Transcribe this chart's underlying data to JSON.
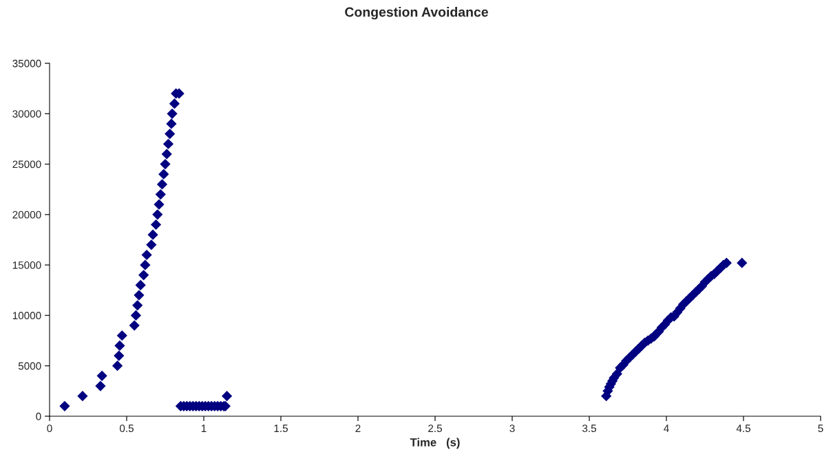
{
  "chart_data": {
    "type": "scatter",
    "title": "Congestion Avoidance",
    "xlabel": "Time   (s)",
    "xlim": [
      0,
      5
    ],
    "xticks": [
      0,
      0.5,
      1,
      1.5,
      2,
      2.5,
      3,
      3.5,
      4,
      4.5,
      5
    ],
    "ylim": [
      0,
      35000
    ],
    "yticks": [
      0,
      5000,
      10000,
      15000,
      20000,
      25000,
      30000,
      35000
    ],
    "grid": false,
    "legend": false,
    "marker": "diamond",
    "series": [
      {
        "color": "#000080",
        "x": [
          0.098,
          0.214,
          0.33,
          0.34,
          0.44,
          0.45,
          0.455,
          0.47,
          0.55,
          0.56,
          0.57,
          0.58,
          0.59,
          0.61,
          0.62,
          0.63,
          0.66,
          0.67,
          0.69,
          0.7,
          0.71,
          0.72,
          0.73,
          0.74,
          0.75,
          0.76,
          0.77,
          0.78,
          0.79,
          0.795,
          0.81,
          0.82,
          0.84,
          0.85,
          0.87,
          0.89,
          0.91,
          0.93,
          0.95,
          0.97,
          0.99,
          1.01,
          1.03,
          1.05,
          1.07,
          1.09,
          1.11,
          1.13,
          1.14,
          1.15,
          3.61,
          3.62,
          3.63,
          3.64,
          3.65,
          3.66,
          3.68,
          3.7,
          3.72,
          3.74,
          3.76,
          3.78,
          3.8,
          3.82,
          3.84,
          3.86,
          3.88,
          3.9,
          3.92,
          3.93,
          3.95,
          3.97,
          3.99,
          4.01,
          4.03,
          4.05,
          4.07,
          4.09,
          4.11,
          4.13,
          4.15,
          4.17,
          4.19,
          4.21,
          4.23,
          4.25,
          4.27,
          4.29,
          4.31,
          4.33,
          4.35,
          4.37,
          4.39,
          4.49
        ],
        "values": [
          1000,
          2000,
          3000,
          4000,
          5000,
          6000,
          7000,
          8000,
          9000,
          10000,
          11000,
          12000,
          13000,
          14000,
          15000,
          16000,
          17000,
          18000,
          19000,
          20000,
          21000,
          22000,
          23000,
          24000,
          25000,
          26000,
          27000,
          28000,
          29000,
          30000,
          31000,
          32000,
          32000,
          1000,
          1000,
          1000,
          1000,
          1000,
          1000,
          1000,
          1000,
          1000,
          1000,
          1000,
          1000,
          1000,
          1000,
          1000,
          1000,
          2000,
          2000,
          2500,
          2900,
          3200,
          3500,
          3800,
          4200,
          4800,
          5100,
          5500,
          5800,
          6100,
          6400,
          6700,
          7000,
          7300,
          7500,
          7700,
          7900,
          8100,
          8400,
          8800,
          9100,
          9500,
          9800,
          9900,
          10300,
          10700,
          11100,
          11400,
          11700,
          12000,
          12300,
          12600,
          12900,
          13300,
          13600,
          13900,
          14100,
          14400,
          14700,
          15000,
          15200,
          15200
        ]
      }
    ]
  }
}
